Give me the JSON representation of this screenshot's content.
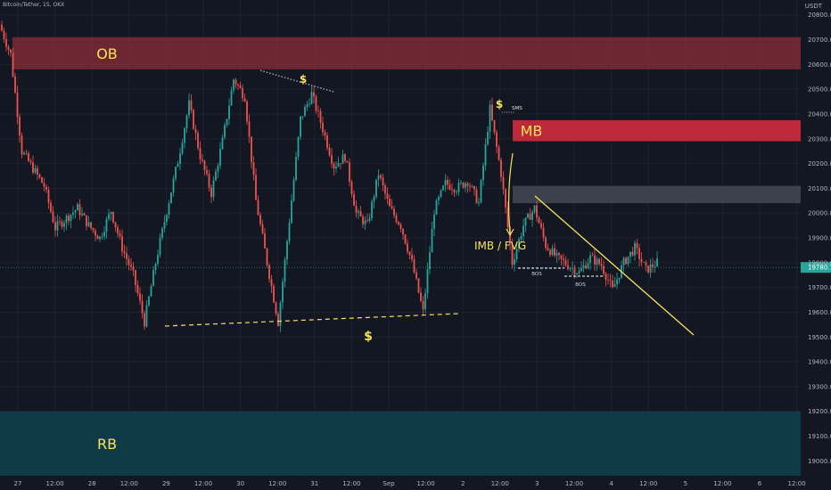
{
  "header": {
    "symbol_line": "Bitcoin/Tether, 15, OKX",
    "currency": "USDT"
  },
  "colors": {
    "bg": "#131722",
    "up": "#26a69a",
    "down": "#ef5350",
    "annotation": "#f7e35a",
    "ob": "#8b2d3a",
    "mb": "#c62a3b",
    "rb": "#0e3d48",
    "grey_zone": "#434651"
  },
  "chart_data": {
    "type": "candlestick",
    "ylim": [
      18940,
      20860
    ],
    "y_ticks": [
      20800,
      20700,
      20600,
      20500,
      20400,
      20300,
      20200,
      20100,
      20000,
      19900,
      19800,
      19700,
      19600,
      19500,
      19400,
      19300,
      19200,
      19100,
      19000
    ],
    "x_labels": [
      "27",
      "12:00",
      "28",
      "12:00",
      "29",
      "12:00",
      "30",
      "12:00",
      "31",
      "12:00",
      "Sep",
      "12:00",
      "2",
      "12:00",
      "3",
      "12:00",
      "4",
      "12:00",
      "5",
      "12:00",
      "6",
      "12:00"
    ],
    "price_path": [
      [
        0,
        20760
      ],
      [
        1,
        20640
      ],
      [
        2,
        20250
      ],
      [
        3,
        20180
      ],
      [
        4,
        20110
      ],
      [
        5,
        19940
      ],
      [
        6,
        19980
      ],
      [
        7,
        20020
      ],
      [
        8,
        19950
      ],
      [
        9,
        19900
      ],
      [
        10,
        20010
      ],
      [
        11,
        19860
      ],
      [
        12,
        19750
      ],
      [
        13,
        19560
      ],
      [
        14,
        19800
      ],
      [
        15,
        20010
      ],
      [
        16,
        20210
      ],
      [
        17,
        20440
      ],
      [
        18,
        20230
      ],
      [
        19,
        20080
      ],
      [
        20,
        20290
      ],
      [
        21,
        20540
      ],
      [
        22,
        20470
      ],
      [
        23,
        20050
      ],
      [
        24,
        19800
      ],
      [
        25,
        19560
      ],
      [
        26,
        19970
      ],
      [
        27,
        20380
      ],
      [
        28,
        20480
      ],
      [
        29,
        20340
      ],
      [
        30,
        20190
      ],
      [
        31,
        20230
      ],
      [
        32,
        20000
      ],
      [
        33,
        19950
      ],
      [
        34,
        20160
      ],
      [
        35,
        20020
      ],
      [
        36,
        19950
      ],
      [
        37,
        19800
      ],
      [
        38,
        19600
      ],
      [
        39,
        20010
      ],
      [
        40,
        20120
      ],
      [
        41,
        20100
      ],
      [
        42,
        20130
      ],
      [
        43,
        20040
      ],
      [
        44,
        20420
      ],
      [
        45,
        20160
      ],
      [
        46,
        19800
      ],
      [
        47,
        19950
      ],
      [
        48,
        20020
      ],
      [
        49,
        19870
      ],
      [
        50,
        19820
      ],
      [
        51,
        19790
      ],
      [
        52,
        19760
      ],
      [
        53,
        19820
      ],
      [
        54,
        19790
      ],
      [
        55,
        19690
      ],
      [
        56,
        19800
      ],
      [
        57,
        19860
      ],
      [
        58,
        19770
      ],
      [
        59,
        19800
      ]
    ],
    "current_price": "19780.7",
    "zones": [
      {
        "name": "OB",
        "top": 20710,
        "bottom": 20580,
        "label": "OB"
      },
      {
        "name": "MB",
        "top": 20375,
        "bottom": 20290,
        "label": "MB"
      },
      {
        "name": "grey",
        "top": 20110,
        "bottom": 20040,
        "label": ""
      },
      {
        "name": "RB",
        "top": 19200,
        "bottom": 18940,
        "label": "RB"
      }
    ],
    "annotations": {
      "dollar_top": "$",
      "dollar_bottom": "$",
      "dollar_mid": "$",
      "sms": "SMS",
      "imb": "IMB / FVG",
      "bos1": "BOS",
      "bos2": "BOS"
    }
  }
}
